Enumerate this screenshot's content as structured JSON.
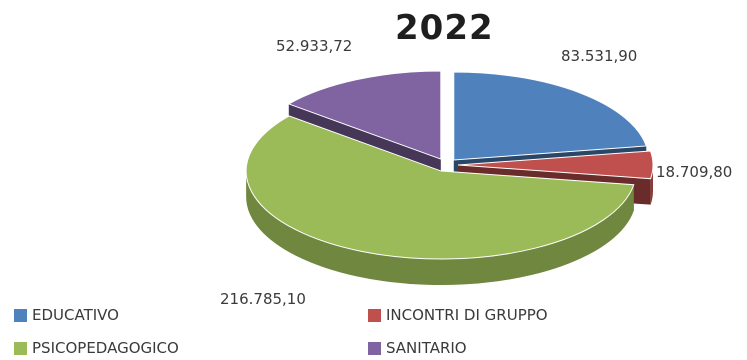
{
  "chart_data": {
    "type": "pie",
    "title": "2022",
    "categories": [
      "EDUCATIVO",
      "INCONTRI DI GRUPPO",
      "PSICOPEDAGOGICO",
      "SANITARIO"
    ],
    "values": [
      83531.9,
      18709.8,
      216785.1,
      52933.72
    ],
    "value_labels": [
      "83.531,90",
      "18.709,80",
      "216.785,10",
      "52.933,72"
    ],
    "colors": [
      "#4f81bd",
      "#c0504d",
      "#9bbb59",
      "#8064a2"
    ],
    "legend_position": "bottom",
    "style": "3d-exploded"
  }
}
